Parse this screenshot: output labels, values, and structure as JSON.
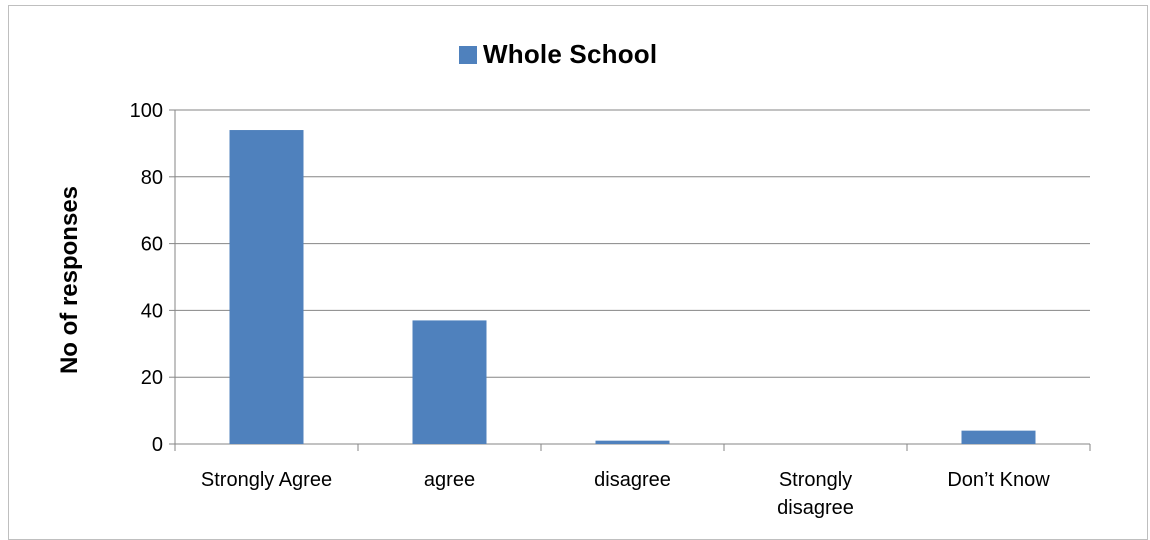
{
  "chart_data": {
    "type": "bar",
    "categories": [
      "Strongly Agree",
      "agree",
      "disagree",
      "Strongly disagree",
      "Don’t Know"
    ],
    "series": [
      {
        "name": "Whole School",
        "values": [
          94,
          37,
          1,
          0,
          4
        ]
      }
    ],
    "title": "",
    "xlabel": "",
    "ylabel": "No of responses",
    "ylim": [
      0,
      100
    ],
    "yticks": [
      0,
      20,
      40,
      60,
      80,
      100
    ],
    "grid": true,
    "legend_position": "top",
    "colors": {
      "bar": "#4F81BD",
      "grid": "#868686",
      "axis": "#868686"
    }
  }
}
